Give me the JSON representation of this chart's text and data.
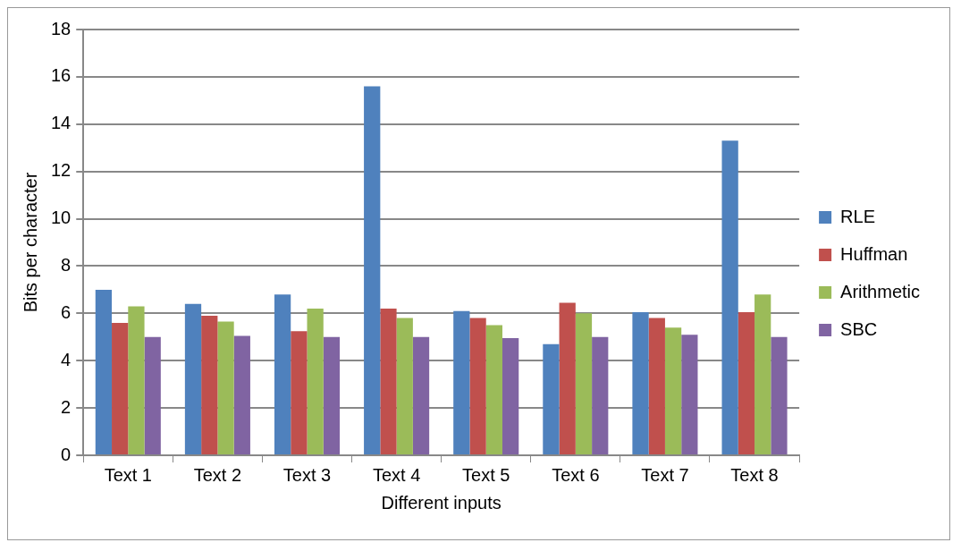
{
  "chart_data": {
    "type": "bar",
    "xlabel": "Different inputs",
    "ylabel": "Bits per character",
    "categories": [
      "Text 1",
      "Text 2",
      "Text 3",
      "Text 4",
      "Text 5",
      "Text 6",
      "Text 7",
      "Text 8"
    ],
    "series": [
      {
        "name": "RLE",
        "color": "#4f81bd",
        "values": [
          7.0,
          6.4,
          6.8,
          15.6,
          6.1,
          4.7,
          6.05,
          13.3
        ]
      },
      {
        "name": "Huffman",
        "color": "#c0504d",
        "values": [
          5.6,
          5.9,
          5.25,
          6.2,
          5.8,
          6.45,
          5.8,
          6.05
        ]
      },
      {
        "name": "Arithmetic",
        "color": "#9bbb59",
        "values": [
          6.3,
          5.65,
          6.2,
          5.8,
          5.5,
          6.0,
          5.4,
          6.8
        ]
      },
      {
        "name": "SBC",
        "color": "#8064a2",
        "values": [
          5.0,
          5.05,
          5.0,
          5.0,
          4.95,
          5.0,
          5.1,
          5.0
        ]
      }
    ],
    "ylim": [
      0,
      18
    ],
    "yticks": [
      0,
      2,
      4,
      6,
      8,
      10,
      12,
      14,
      16,
      18
    ],
    "grid": "y",
    "legend": "right"
  }
}
